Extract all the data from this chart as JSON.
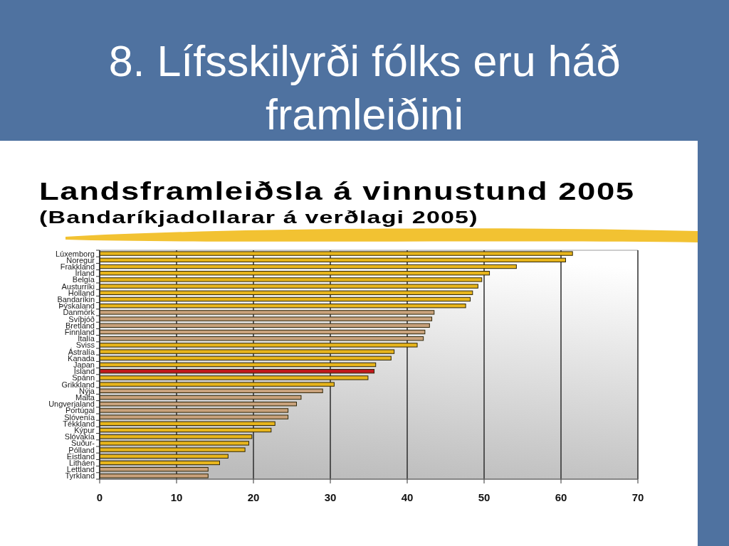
{
  "chart_data": {
    "type": "bar",
    "orientation": "horizontal",
    "title": "Landsframleiðsla á vinnustund 2005",
    "subtitle": "(Bandaríkjadollarar á verðlagi 2005)",
    "annotations": [
      "8. Lífsskilyrði fólks eru háð framleiðini"
    ],
    "categories": [
      "Lúxemborg",
      "Noregur",
      "Frakkland",
      "Írland",
      "Belgía",
      "Austurríki",
      "Holland",
      "Bandaríkin",
      "Þýskaland",
      "Danmörk",
      "Svíþjóð",
      "Bretland",
      "Finnland",
      "Ítalía",
      "Sviss",
      "Ástralía",
      "Kanada",
      "Japan",
      "Ísland",
      "Spánn",
      "Grikkland",
      "Nýja",
      "Malta",
      "Ungverjaland",
      "Portúgal",
      "Slóvenía",
      "Tékkland",
      "Kýpur",
      "Slóvakía",
      "Suður-",
      "Pólland",
      "Eistland",
      "Litháen",
      "Lettland",
      "Tyrkland"
    ],
    "values": [
      61.5,
      60.6,
      54.2,
      50.7,
      49.7,
      49.2,
      48.5,
      48.2,
      47.6,
      43.5,
      43.2,
      42.9,
      42.3,
      42.1,
      41.3,
      38.3,
      37.9,
      35.9,
      35.7,
      34.9,
      30.5,
      29.0,
      26.2,
      25.6,
      24.5,
      24.5,
      22.8,
      22.3,
      19.8,
      19.4,
      18.9,
      16.7,
      15.6,
      14.1,
      14.1
    ],
    "colors": [
      "#e8b51c",
      "#e8b51c",
      "#e8b51c",
      "#e8b51c",
      "#e8b51c",
      "#e8b51c",
      "#e8b51c",
      "#e8b51c",
      "#e8b51c",
      "#c9a27c",
      "#c9a27c",
      "#c9a27c",
      "#c9a27c",
      "#c9a27c",
      "#e8b51c",
      "#e8b51c",
      "#e8b51c",
      "#e8b51c",
      "#c0181c",
      "#e8b51c",
      "#e8b51c",
      "#c9a27c",
      "#c9a27c",
      "#c9a27c",
      "#c9a27c",
      "#c9a27c",
      "#e8b51c",
      "#e8b51c",
      "#e8b51c",
      "#e8b51c",
      "#e8b51c",
      "#e8b51c",
      "#e8b51c",
      "#c9a27c",
      "#c9a27c"
    ],
    "xlim": [
      0,
      70
    ],
    "xticks": [
      0,
      10,
      20,
      30,
      40,
      50,
      60,
      70
    ],
    "grid": "x"
  }
}
